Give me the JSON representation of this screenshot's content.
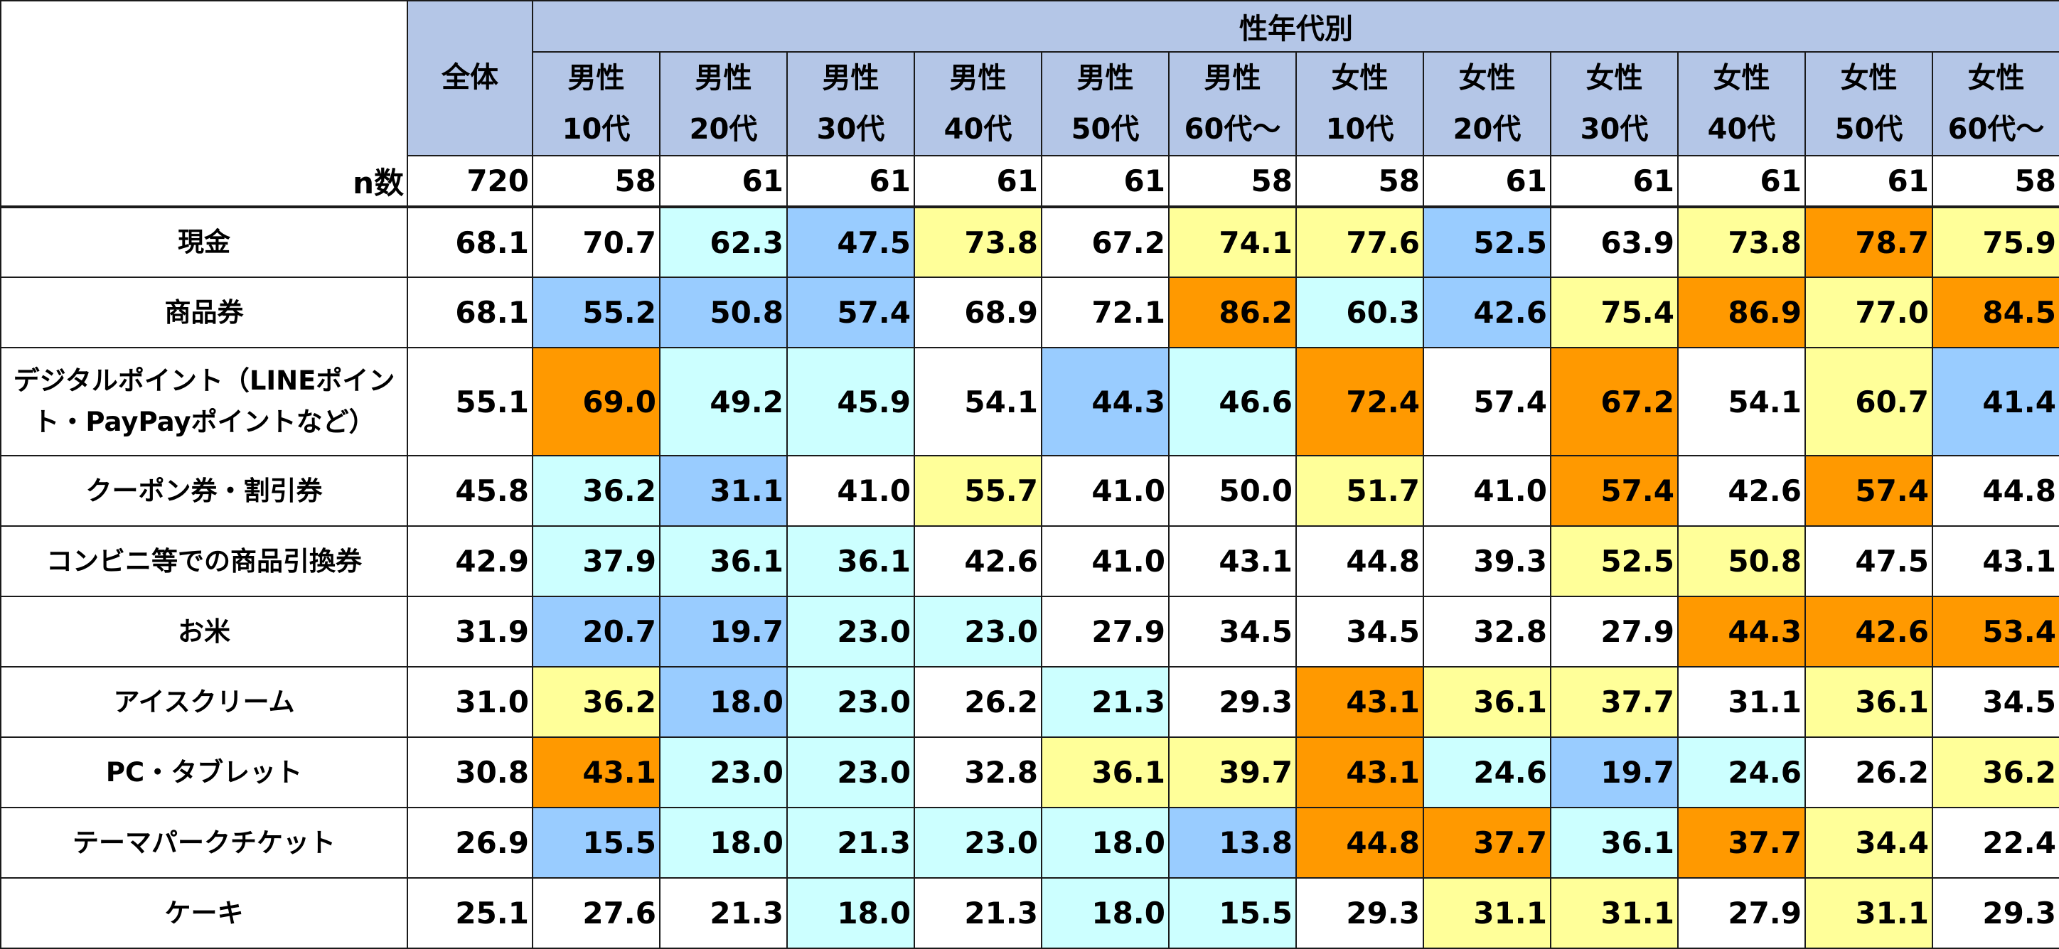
{
  "chart_data": {
    "type": "table",
    "header": {
      "total_label": "全体",
      "group_label": "性年代別",
      "n_label": "n数"
    },
    "columns": [
      {
        "line1": "男性",
        "line2": "10代"
      },
      {
        "line1": "男性",
        "line2": "20代"
      },
      {
        "line1": "男性",
        "line2": "30代"
      },
      {
        "line1": "男性",
        "line2": "40代"
      },
      {
        "line1": "男性",
        "line2": "50代"
      },
      {
        "line1": "男性",
        "line2": "60代～"
      },
      {
        "line1": "女性",
        "line2": "10代"
      },
      {
        "line1": "女性",
        "line2": "20代"
      },
      {
        "line1": "女性",
        "line2": "30代"
      },
      {
        "line1": "女性",
        "line2": "40代"
      },
      {
        "line1": "女性",
        "line2": "50代"
      },
      {
        "line1": "女性",
        "line2": "60代～"
      }
    ],
    "n_values": [
      "720",
      "58",
      "61",
      "61",
      "61",
      "61",
      "58",
      "58",
      "61",
      "61",
      "61",
      "61",
      "58"
    ],
    "rows": [
      {
        "label": "現金",
        "values": [
          "68.1",
          "70.7",
          "62.3",
          "47.5",
          "73.8",
          "67.2",
          "74.1",
          "77.6",
          "52.5",
          "63.9",
          "73.8",
          "78.7",
          "75.9"
        ],
        "levels": [
          "none",
          "none",
          "cyan",
          "blue",
          "yellow",
          "none",
          "yellow",
          "yellow",
          "blue",
          "none",
          "yellow",
          "orange",
          "yellow"
        ]
      },
      {
        "label": "商品券",
        "values": [
          "68.1",
          "55.2",
          "50.8",
          "57.4",
          "68.9",
          "72.1",
          "86.2",
          "60.3",
          "42.6",
          "75.4",
          "86.9",
          "77.0",
          "84.5"
        ],
        "levels": [
          "none",
          "blue",
          "blue",
          "blue",
          "none",
          "none",
          "orange",
          "cyan",
          "blue",
          "yellow",
          "orange",
          "yellow",
          "orange"
        ]
      },
      {
        "label": "デジタルポイント（LINEポイント・PayPayポイントなど）",
        "values": [
          "55.1",
          "69.0",
          "49.2",
          "45.9",
          "54.1",
          "44.3",
          "46.6",
          "72.4",
          "57.4",
          "67.2",
          "54.1",
          "60.7",
          "41.4"
        ],
        "levels": [
          "none",
          "orange",
          "cyan",
          "cyan",
          "none",
          "blue",
          "cyan",
          "orange",
          "none",
          "orange",
          "none",
          "yellow",
          "blue"
        ]
      },
      {
        "label": "クーポン券・割引券",
        "values": [
          "45.8",
          "36.2",
          "31.1",
          "41.0",
          "55.7",
          "41.0",
          "50.0",
          "51.7",
          "41.0",
          "57.4",
          "42.6",
          "57.4",
          "44.8"
        ],
        "levels": [
          "none",
          "cyan",
          "blue",
          "none",
          "yellow",
          "none",
          "none",
          "yellow",
          "none",
          "orange",
          "none",
          "orange",
          "none"
        ]
      },
      {
        "label": "コンビニ等での商品引換券",
        "values": [
          "42.9",
          "37.9",
          "36.1",
          "36.1",
          "42.6",
          "41.0",
          "43.1",
          "44.8",
          "39.3",
          "52.5",
          "50.8",
          "47.5",
          "43.1"
        ],
        "levels": [
          "none",
          "cyan",
          "cyan",
          "cyan",
          "none",
          "none",
          "none",
          "none",
          "none",
          "yellow",
          "yellow",
          "none",
          "none"
        ]
      },
      {
        "label": "お米",
        "values": [
          "31.9",
          "20.7",
          "19.7",
          "23.0",
          "23.0",
          "27.9",
          "34.5",
          "34.5",
          "32.8",
          "27.9",
          "44.3",
          "42.6",
          "53.4"
        ],
        "levels": [
          "none",
          "blue",
          "blue",
          "cyan",
          "cyan",
          "none",
          "none",
          "none",
          "none",
          "none",
          "orange",
          "orange",
          "orange"
        ]
      },
      {
        "label": "アイスクリーム",
        "values": [
          "31.0",
          "36.2",
          "18.0",
          "23.0",
          "26.2",
          "21.3",
          "29.3",
          "43.1",
          "36.1",
          "37.7",
          "31.1",
          "36.1",
          "34.5"
        ],
        "levels": [
          "none",
          "yellow",
          "blue",
          "cyan",
          "none",
          "cyan",
          "none",
          "orange",
          "yellow",
          "yellow",
          "none",
          "yellow",
          "none"
        ]
      },
      {
        "label": "PC・タブレット",
        "values": [
          "30.8",
          "43.1",
          "23.0",
          "23.0",
          "32.8",
          "36.1",
          "39.7",
          "43.1",
          "24.6",
          "19.7",
          "24.6",
          "26.2",
          "36.2"
        ],
        "levels": [
          "none",
          "orange",
          "cyan",
          "cyan",
          "none",
          "yellow",
          "yellow",
          "orange",
          "cyan",
          "blue",
          "cyan",
          "none",
          "yellow"
        ]
      },
      {
        "label": "テーマパークチケット",
        "values": [
          "26.9",
          "15.5",
          "18.0",
          "21.3",
          "23.0",
          "18.0",
          "13.8",
          "44.8",
          "37.7",
          "36.1",
          "37.7",
          "34.4",
          "22.4"
        ],
        "levels": [
          "none",
          "blue",
          "cyan",
          "cyan",
          "cyan",
          "cyan",
          "blue",
          "orange",
          "orange",
          "cyan",
          "orange",
          "yellow",
          "none"
        ]
      },
      {
        "label": "ケーキ",
        "values": [
          "25.1",
          "27.6",
          "21.3",
          "18.0",
          "21.3",
          "18.0",
          "15.5",
          "29.3",
          "31.1",
          "31.1",
          "27.9",
          "31.1",
          "29.3"
        ],
        "levels": [
          "none",
          "none",
          "none",
          "cyan",
          "none",
          "cyan",
          "cyan",
          "none",
          "yellow",
          "yellow",
          "none",
          "yellow",
          "none"
        ]
      }
    ],
    "colors": {
      "header_bg": "#b4c6e7",
      "orange": "#ff9900",
      "yellow": "#ffff99",
      "cyan": "#ccffff",
      "blue": "#99ccff",
      "none": "#ffffff"
    }
  }
}
